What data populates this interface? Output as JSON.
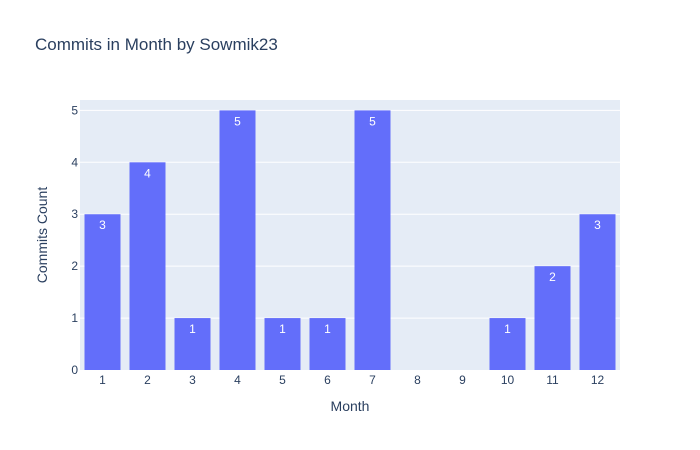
{
  "chart_data": {
    "type": "bar",
    "title": "Commits in Month by Sowmik23",
    "xlabel": "Month",
    "ylabel": "Commits Count",
    "categories": [
      "1",
      "2",
      "3",
      "4",
      "5",
      "6",
      "7",
      "8",
      "9",
      "10",
      "11",
      "12"
    ],
    "values": [
      3,
      4,
      1,
      5,
      1,
      1,
      5,
      0,
      0,
      1,
      2,
      3
    ],
    "ylim": [
      0,
      5.2
    ],
    "yticks": [
      0,
      1,
      2,
      3,
      4,
      5
    ],
    "grid": true,
    "data_labels": true,
    "colors": {
      "bar": "#636efa",
      "plot_bg": "#e5ecf6",
      "grid": "#ffffff",
      "text": "#2a3f5f"
    }
  }
}
